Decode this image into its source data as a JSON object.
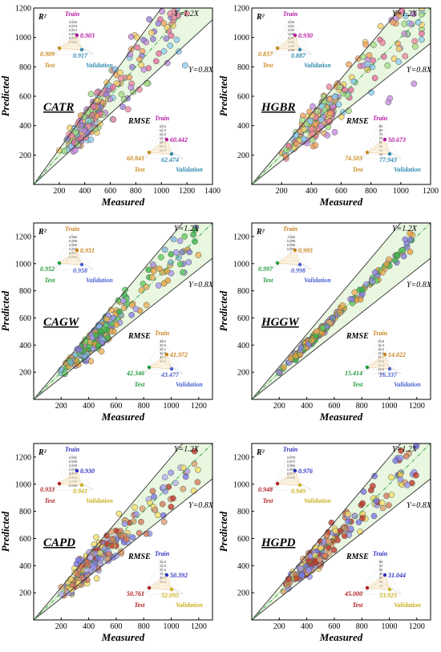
{
  "chart_data": [
    {
      "type": "scatter",
      "title": "CATR",
      "xlabel": "Measured",
      "ylabel": "Predicted",
      "xlim": [
        0,
        1400
      ],
      "ylim": [
        0,
        1200
      ],
      "xticks": [
        "200",
        "400",
        "600",
        "800",
        "1000",
        "1200",
        "1400"
      ],
      "yticks": [
        "200",
        "400",
        "600",
        "800",
        "1000",
        "1200"
      ],
      "lines": [
        "Y=1.2X",
        "Y=0.8X"
      ],
      "palette": [
        "#e76fa0",
        "#f08aa0",
        "#c78de0",
        "#8fd0f0",
        "#f6d36b",
        "#a7e08a",
        "#f4a460",
        "#9a7fd6"
      ],
      "r2": {
        "head": "R²",
        "train_label": "Train",
        "test_label": "Test",
        "validation_label": "Validation",
        "train": "0.903",
        "test": "0.909",
        "validation": "0.917",
        "scale": [
          "0.920",
          "0.916",
          "0.912",
          "0.908",
          "0.904",
          "0.900"
        ],
        "colors": {
          "train": "#b5179e",
          "test": "#c98a1e",
          "validation": "#2f8ab0"
        }
      },
      "rmse": {
        "head": "RMSE",
        "train_label": "Train",
        "test_label": "Test",
        "validation_label": "Validation",
        "train": "60.442",
        "test": "60.841",
        "validation": "62.474",
        "scale": [
          "63.0",
          "62.5",
          "62.0",
          "61.5",
          "61.0",
          "60.5",
          "60.0"
        ],
        "colors": {
          "train": "#b5179e",
          "test": "#c98a1e",
          "validation": "#2f8ab0"
        }
      }
    },
    {
      "type": "scatter",
      "title": "HGBR",
      "xlabel": "Measured",
      "ylabel": "Predicted",
      "xlim": [
        0,
        1200
      ],
      "ylim": [
        0,
        1200
      ],
      "xticks": [
        "200",
        "400",
        "600",
        "800",
        "1000",
        "1200"
      ],
      "yticks": [
        "200",
        "400",
        "600",
        "800",
        "1000",
        "1200"
      ],
      "lines": [
        "Y=1.2X",
        "Y=0.8X"
      ],
      "palette": [
        "#e76fa0",
        "#f08aa0",
        "#c78de0",
        "#8fd0f0",
        "#f6d36b",
        "#a7e08a",
        "#f4a460"
      ],
      "r2": {
        "head": "R²",
        "train_label": "Train",
        "test_label": "Test",
        "validation_label": "Validation",
        "train": "0.930",
        "test": "0.837",
        "validation": "0.887",
        "scale": [
          "0.94",
          "0.92",
          "0.90",
          "0.88",
          "0.86",
          "0.84",
          "0.82",
          "0.80"
        ],
        "colors": {
          "train": "#b5179e",
          "test": "#c98a1e",
          "validation": "#2f8ab0"
        }
      },
      "rmse": {
        "head": "RMSE",
        "train_label": "Train",
        "test_label": "Test",
        "validation_label": "Validation",
        "train": "50.673",
        "test": "74.503",
        "validation": "77.943",
        "scale": [
          "85",
          "80",
          "75",
          "70",
          "65",
          "60",
          "55",
          "50"
        ],
        "colors": {
          "train": "#b5179e",
          "test": "#c98a1e",
          "validation": "#2f8ab0"
        }
      }
    },
    {
      "type": "scatter",
      "title": "CAGW",
      "xlabel": "Measured",
      "ylabel": "Predicted",
      "xlim": [
        0,
        1300
      ],
      "ylim": [
        0,
        1300
      ],
      "xticks": [
        "200",
        "400",
        "600",
        "800",
        "1000",
        "1200"
      ],
      "yticks": [
        "200",
        "400",
        "600",
        "800",
        "1000",
        "1200"
      ],
      "lines": [
        "Y=1.2X",
        "Y=0.8X"
      ],
      "palette": [
        "#e8a33d",
        "#f0b25a",
        "#3cb44b",
        "#5fcf60",
        "#8a7fe0",
        "#a99af0",
        "#7fb8e0"
      ],
      "r2": {
        "head": "R²",
        "train_label": "Train",
        "test_label": "Test",
        "validation_label": "Validation",
        "train": "0.951",
        "test": "0.952",
        "validation": "0.958",
        "scale": [
          "0.960",
          "0.958",
          "0.956",
          "0.954",
          "0.952",
          "0.950"
        ],
        "colors": {
          "train": "#c9821e",
          "test": "#1f9a3a",
          "validation": "#4a5fd0"
        }
      },
      "rmse": {
        "head": "RMSE",
        "train_label": "Train",
        "test_label": "Test",
        "validation_label": "Validation",
        "train": "41.972",
        "test": "42.346",
        "validation": "43.477",
        "scale": [
          "44.0",
          "43.6",
          "43.2",
          "42.8",
          "42.4",
          "42.0"
        ],
        "colors": {
          "train": "#c9821e",
          "test": "#1f9a3a",
          "validation": "#4a5fd0"
        }
      }
    },
    {
      "type": "scatter",
      "title": "HGGW",
      "xlabel": "Measured",
      "ylabel": "Predicted",
      "xlim": [
        0,
        1300
      ],
      "ylim": [
        0,
        1300
      ],
      "xticks": [
        "200",
        "400",
        "600",
        "800",
        "1000",
        "1200"
      ],
      "yticks": [
        "200",
        "400",
        "600",
        "800",
        "1000",
        "1200"
      ],
      "lines": [
        "Y=1.2X",
        "Y=0.8X"
      ],
      "palette": [
        "#e8a33d",
        "#f0b25a",
        "#3cb44b",
        "#5fcf60",
        "#8a7fe0",
        "#a99af0"
      ],
      "r2": {
        "head": "R²",
        "train_label": "Train",
        "test_label": "Test",
        "validation_label": "Validation",
        "train": "0.995",
        "test": "0.997",
        "validation": "0.998",
        "scale": [
          "1.000",
          "0.998",
          "0.996",
          "0.994"
        ],
        "colors": {
          "train": "#c9821e",
          "test": "#1f9a3a",
          "validation": "#4a5fd0"
        }
      },
      "rmse": {
        "head": "RMSE",
        "train_label": "Train",
        "test_label": "Test",
        "validation_label": "Validation",
        "train": "14.022",
        "test": "15.414",
        "validation": "16.337",
        "scale": [
          "16.8",
          "16.4",
          "16.0",
          "15.6",
          "15.2",
          "14.8",
          "14.4",
          "14.0",
          "13.6"
        ],
        "colors": {
          "train": "#c9821e",
          "test": "#1f9a3a",
          "validation": "#4a5fd0"
        }
      }
    },
    {
      "type": "scatter",
      "title": "CAPD",
      "xlabel": "Measured",
      "ylabel": "Predicted",
      "xlim": [
        0,
        1300
      ],
      "ylim": [
        0,
        1300
      ],
      "xticks": [
        "200",
        "400",
        "600",
        "800",
        "1000",
        "1200"
      ],
      "yticks": [
        "200",
        "400",
        "600",
        "800",
        "1000",
        "1200"
      ],
      "lines": [
        "Y=1.2X",
        "Y=0.8X"
      ],
      "palette": [
        "#7b78e8",
        "#9a97f0",
        "#e0a070",
        "#f4e06a",
        "#c0392b",
        "#d47a5a",
        "#b9b3f5"
      ],
      "r2": {
        "head": "R²",
        "train_label": "Train",
        "test_label": "Test",
        "validation_label": "Validation",
        "train": "0.930",
        "test": "0.933",
        "validation": "0.941",
        "scale": [
          "0.942",
          "0.940",
          "0.938",
          "0.936",
          "0.934",
          "0.932",
          "0.930",
          "0.928"
        ],
        "colors": {
          "train": "#2f2fc0",
          "test": "#b02020",
          "validation": "#c9b01e"
        }
      },
      "rmse": {
        "head": "RMSE",
        "train_label": "Train",
        "test_label": "Test",
        "validation_label": "Validation",
        "train": "50.392",
        "test": "50.761",
        "validation": "52.095",
        "scale": [
          "52.4",
          "52.0",
          "51.6",
          "51.2",
          "50.8",
          "50.4"
        ],
        "colors": {
          "train": "#2f2fc0",
          "test": "#b02020",
          "validation": "#c9b01e"
        }
      }
    },
    {
      "type": "scatter",
      "title": "HGPD",
      "xlabel": "Measured",
      "ylabel": "Predicted",
      "xlim": [
        0,
        1300
      ],
      "ylim": [
        0,
        1300
      ],
      "xticks": [
        "200",
        "400",
        "600",
        "800",
        "1000",
        "1200"
      ],
      "yticks": [
        "200",
        "400",
        "600",
        "800",
        "1000",
        "1200"
      ],
      "lines": [
        "Y=1.2X",
        "Y=0.8X"
      ],
      "palette": [
        "#7b78e8",
        "#9a97f0",
        "#e0a070",
        "#f4e06a",
        "#c0392b",
        "#d47a5a"
      ],
      "r2": {
        "head": "R²",
        "train_label": "Train",
        "test_label": "Test",
        "validation_label": "Validation",
        "train": "0.976",
        "test": "0.948",
        "validation": "0.949",
        "scale": [
          "0.978",
          "0.972",
          "0.966",
          "0.960",
          "0.954",
          "0.948"
        ],
        "colors": {
          "train": "#2f2fc0",
          "test": "#b02020",
          "validation": "#c9b01e"
        }
      },
      "rmse": {
        "head": "RMSE",
        "train_label": "Train",
        "test_label": "Test",
        "validation_label": "Validation",
        "train": "31.044",
        "test": "45.000",
        "validation": "53.925",
        "scale": [
          "60",
          "55",
          "50",
          "45",
          "40",
          "35",
          "30"
        ],
        "colors": {
          "train": "#2f2fc0",
          "test": "#b02020",
          "validation": "#c9b01e"
        }
      }
    }
  ]
}
